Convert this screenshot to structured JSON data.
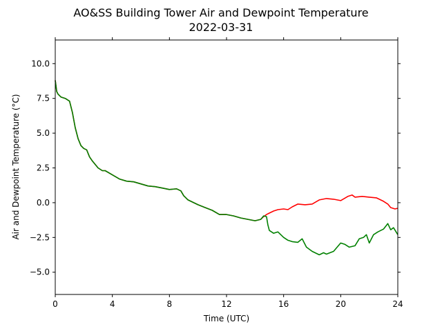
{
  "chart_data": {
    "type": "line",
    "title": "AO&SS Building Tower Air and Dewpoint Temperature",
    "subtitle": "2022-03-31",
    "xlabel": "Time (UTC)",
    "ylabel": "Air and Dewpoint Temperature (°C)",
    "xlim": [
      0,
      24
    ],
    "ylim": [
      -6.6,
      11.7
    ],
    "xticks": [
      0,
      4,
      8,
      12,
      16,
      20,
      24
    ],
    "yticks": [
      -5.0,
      -2.5,
      0.0,
      2.5,
      5.0,
      7.5,
      10.0
    ],
    "ytick_labels": [
      "−5.0",
      "−2.5",
      "0.0",
      "2.5",
      "5.0",
      "7.5",
      "10.0"
    ],
    "grid": false,
    "legend": "none",
    "series": [
      {
        "color": "#ff0000",
        "x": [
          0,
          0.1,
          0.2,
          0.4,
          0.7,
          1.0,
          1.2,
          1.4,
          1.6,
          1.8,
          2.0,
          2.2,
          2.4,
          2.6,
          3.0,
          3.3,
          3.5,
          4.0,
          4.5,
          5.0,
          5.5,
          6.0,
          6.5,
          7.0,
          7.5,
          8.0,
          8.5,
          8.8,
          9.0,
          9.3,
          9.6,
          10.0,
          10.5,
          11.0,
          11.5,
          12.0,
          12.5,
          13.0,
          13.5,
          14.0,
          14.4,
          14.6,
          14.8,
          15.0,
          15.3,
          15.6,
          16.0,
          16.3,
          16.6,
          17.0,
          17.5,
          18.0,
          18.5,
          19.0,
          19.5,
          20.0,
          20.5,
          20.8,
          21.0,
          21.5,
          22.0,
          22.5,
          23.0,
          23.3,
          23.5,
          23.8,
          24.0
        ],
        "y": [
          8.8,
          8.0,
          7.8,
          7.6,
          7.5,
          7.3,
          6.5,
          5.4,
          4.6,
          4.1,
          3.9,
          3.8,
          3.3,
          3.0,
          2.5,
          2.3,
          2.3,
          2.0,
          1.7,
          1.55,
          1.5,
          1.35,
          1.2,
          1.15,
          1.05,
          0.95,
          1.0,
          0.85,
          0.5,
          0.2,
          0.05,
          -0.15,
          -0.35,
          -0.55,
          -0.85,
          -0.85,
          -0.95,
          -1.1,
          -1.2,
          -1.3,
          -1.2,
          -1.0,
          -0.85,
          -0.75,
          -0.6,
          -0.5,
          -0.45,
          -0.5,
          -0.3,
          -0.1,
          -0.15,
          -0.1,
          0.2,
          0.3,
          0.25,
          0.15,
          0.45,
          0.55,
          0.4,
          0.45,
          0.4,
          0.35,
          0.1,
          -0.1,
          -0.35,
          -0.45,
          -0.4
        ]
      },
      {
        "color": "#008000",
        "x": [
          0,
          0.1,
          0.2,
          0.4,
          0.7,
          1.0,
          1.2,
          1.4,
          1.6,
          1.8,
          2.0,
          2.2,
          2.4,
          2.6,
          3.0,
          3.3,
          3.5,
          4.0,
          4.5,
          5.0,
          5.5,
          6.0,
          6.5,
          7.0,
          7.5,
          8.0,
          8.5,
          8.8,
          9.0,
          9.3,
          9.6,
          10.0,
          10.5,
          11.0,
          11.5,
          12.0,
          12.5,
          13.0,
          13.5,
          14.0,
          14.4,
          14.6,
          14.8,
          14.9,
          15.0,
          15.3,
          15.6,
          16.0,
          16.3,
          16.6,
          17.0,
          17.3,
          17.6,
          18.0,
          18.5,
          18.8,
          19.0,
          19.5,
          20.0,
          20.3,
          20.6,
          21.0,
          21.3,
          21.6,
          21.8,
          22.0,
          22.3,
          22.6,
          23.0,
          23.3,
          23.5,
          23.7,
          24.0
        ],
        "y": [
          8.8,
          8.0,
          7.8,
          7.6,
          7.5,
          7.3,
          6.5,
          5.4,
          4.6,
          4.1,
          3.9,
          3.8,
          3.3,
          3.0,
          2.5,
          2.3,
          2.3,
          2.0,
          1.7,
          1.55,
          1.5,
          1.35,
          1.2,
          1.15,
          1.05,
          0.95,
          1.0,
          0.85,
          0.5,
          0.2,
          0.05,
          -0.15,
          -0.35,
          -0.55,
          -0.85,
          -0.85,
          -0.95,
          -1.1,
          -1.2,
          -1.3,
          -1.2,
          -0.95,
          -1.0,
          -1.6,
          -2.0,
          -2.2,
          -2.1,
          -2.5,
          -2.7,
          -2.8,
          -2.85,
          -2.6,
          -3.2,
          -3.5,
          -3.75,
          -3.6,
          -3.7,
          -3.5,
          -2.9,
          -3.0,
          -3.2,
          -3.1,
          -2.6,
          -2.5,
          -2.3,
          -2.9,
          -2.3,
          -2.1,
          -1.9,
          -1.5,
          -1.95,
          -1.8,
          -2.3
        ]
      }
    ]
  }
}
